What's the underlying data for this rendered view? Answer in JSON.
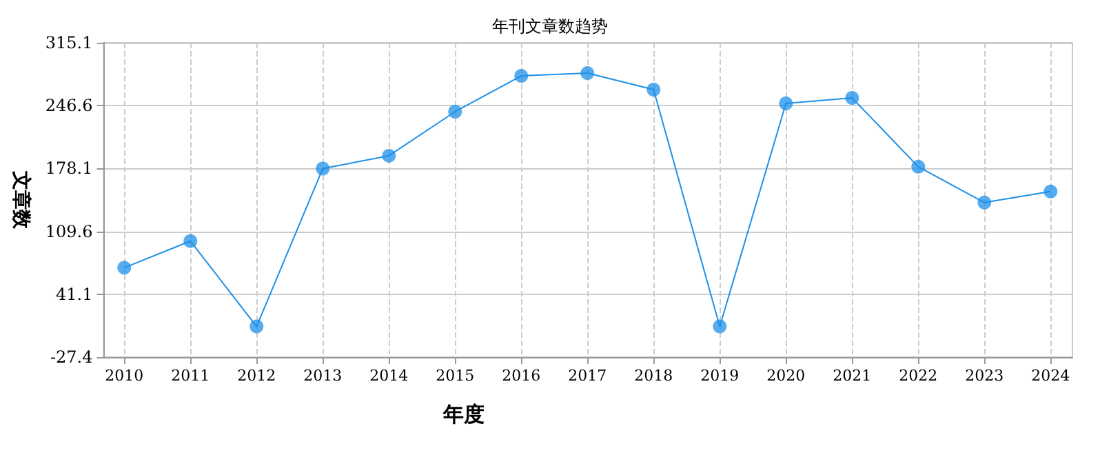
{
  "chart_data": {
    "type": "line",
    "title": "年刊文章数趋势",
    "xlabel": "年度",
    "ylabel": "文章数",
    "x": [
      2010,
      2011,
      2012,
      2013,
      2014,
      2015,
      2016,
      2017,
      2018,
      2019,
      2020,
      2021,
      2022,
      2023,
      2024
    ],
    "series": [
      {
        "color": "#1e90e8",
        "values": [
          70,
          99,
          6,
          178,
          192,
          240,
          279,
          282,
          264,
          6,
          249,
          255,
          180,
          141,
          153
        ]
      }
    ],
    "xlim": [
      2009.69,
      2024.33
    ],
    "xticks": [
      2010,
      2011,
      2012,
      2013,
      2014,
      2015,
      2016,
      2017,
      2018,
      2019,
      2020,
      2021,
      2022,
      2023,
      2024
    ],
    "ylim": [
      -27.4,
      315.1
    ],
    "yticks": [
      -27.4,
      41.1,
      109.6,
      178.1,
      246.6,
      315.1
    ],
    "grid": true,
    "marker": "circle",
    "line_style": "solid"
  }
}
